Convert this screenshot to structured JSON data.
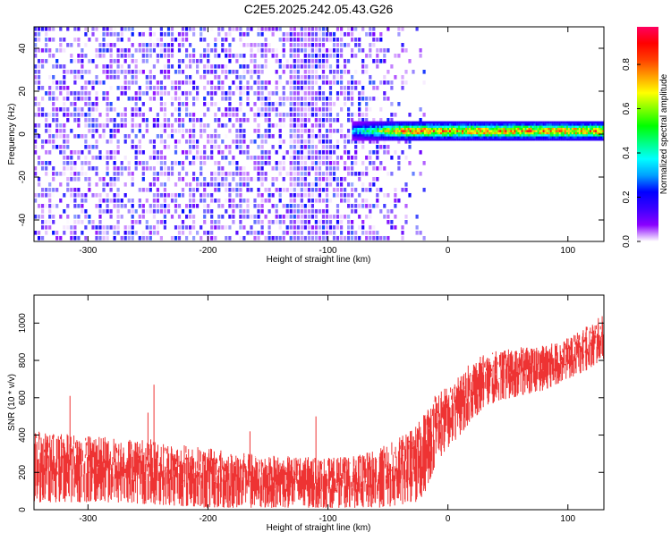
{
  "title": "C2E5.2025.242.05.43.G26",
  "colors": {
    "snr_trace": "#ee3333",
    "frame": "#000000",
    "background": "#ffffff",
    "spectrogram_noise": "#7a1ff0",
    "colormap": [
      "#ffffff",
      "#8a00ff",
      "#3a00ff",
      "#0000ff",
      "#00a0ff",
      "#00ffff",
      "#00ff80",
      "#00ff00",
      "#80ff00",
      "#ffff00",
      "#ffa000",
      "#ff4000",
      "#ff0000",
      "#ff0060"
    ]
  },
  "chart_data": [
    {
      "type": "heatmap",
      "name": "spectrogram",
      "xlabel": "Height of straight line (km)",
      "ylabel": "Frequency (Hz)",
      "xlim": [
        -345,
        130
      ],
      "ylim": [
        -50,
        50
      ],
      "x_ticks": [
        -300,
        -200,
        -100,
        0,
        100
      ],
      "x_tick_labels": [
        "-300",
        "-200",
        "-100",
        "0",
        "100"
      ],
      "y_ticks": [
        -40,
        -20,
        0,
        20,
        40
      ],
      "y_tick_labels": [
        "-40",
        "-20",
        "0",
        "20",
        "40"
      ],
      "signal_band": {
        "x_start": -80,
        "x_end": 130,
        "freq_center": 1.5,
        "peak_amplitude": 0.95
      },
      "noise_region": {
        "x_start": -345,
        "x_end": -20,
        "amplitude_range": [
          0.0,
          0.25
        ]
      },
      "colorbar": {
        "label": "Normalized spectral amplitude",
        "range": [
          0.0,
          0.97
        ],
        "ticks": [
          0.0,
          0.2,
          0.4,
          0.6,
          0.8
        ],
        "tick_labels": [
          "0.0",
          "0.2",
          "0.4",
          "0.6",
          "0.8"
        ]
      },
      "grid": false
    },
    {
      "type": "line",
      "name": "snr",
      "xlabel": "Height of straight line (km)",
      "ylabel": "SNR (10 * v/v)",
      "xlim": [
        -345,
        130
      ],
      "ylim": [
        0,
        1150
      ],
      "x_ticks": [
        -300,
        -200,
        -100,
        0,
        100
      ],
      "x_tick_labels": [
        "-300",
        "-200",
        "-100",
        "0",
        "100"
      ],
      "y_ticks": [
        0,
        200,
        400,
        600,
        800,
        1000
      ],
      "y_tick_labels": [
        "0",
        "200",
        "400",
        "600",
        "800",
        "1000"
      ],
      "envelope": {
        "x": [
          -345,
          -300,
          -250,
          -200,
          -150,
          -100,
          -80,
          -60,
          -40,
          -25,
          -20,
          -15,
          -10,
          0,
          10,
          20,
          30,
          40,
          60,
          80,
          100,
          110,
          120,
          130
        ],
        "upper": [
          420,
          400,
          380,
          330,
          290,
          280,
          285,
          320,
          390,
          460,
          520,
          580,
          640,
          660,
          720,
          800,
          830,
          850,
          870,
          880,
          920,
          960,
          1000,
          1050
        ],
        "lower": [
          40,
          40,
          30,
          10,
          10,
          10,
          10,
          10,
          20,
          40,
          80,
          160,
          250,
          330,
          400,
          480,
          540,
          580,
          610,
          640,
          700,
          730,
          760,
          800
        ]
      },
      "spikes": [
        {
          "x": -245,
          "y": 670
        },
        {
          "x": -250,
          "y": 520
        },
        {
          "x": -315,
          "y": 610
        },
        {
          "x": -110,
          "y": 500
        },
        {
          "x": -165,
          "y": 420
        }
      ],
      "grid": false
    }
  ]
}
